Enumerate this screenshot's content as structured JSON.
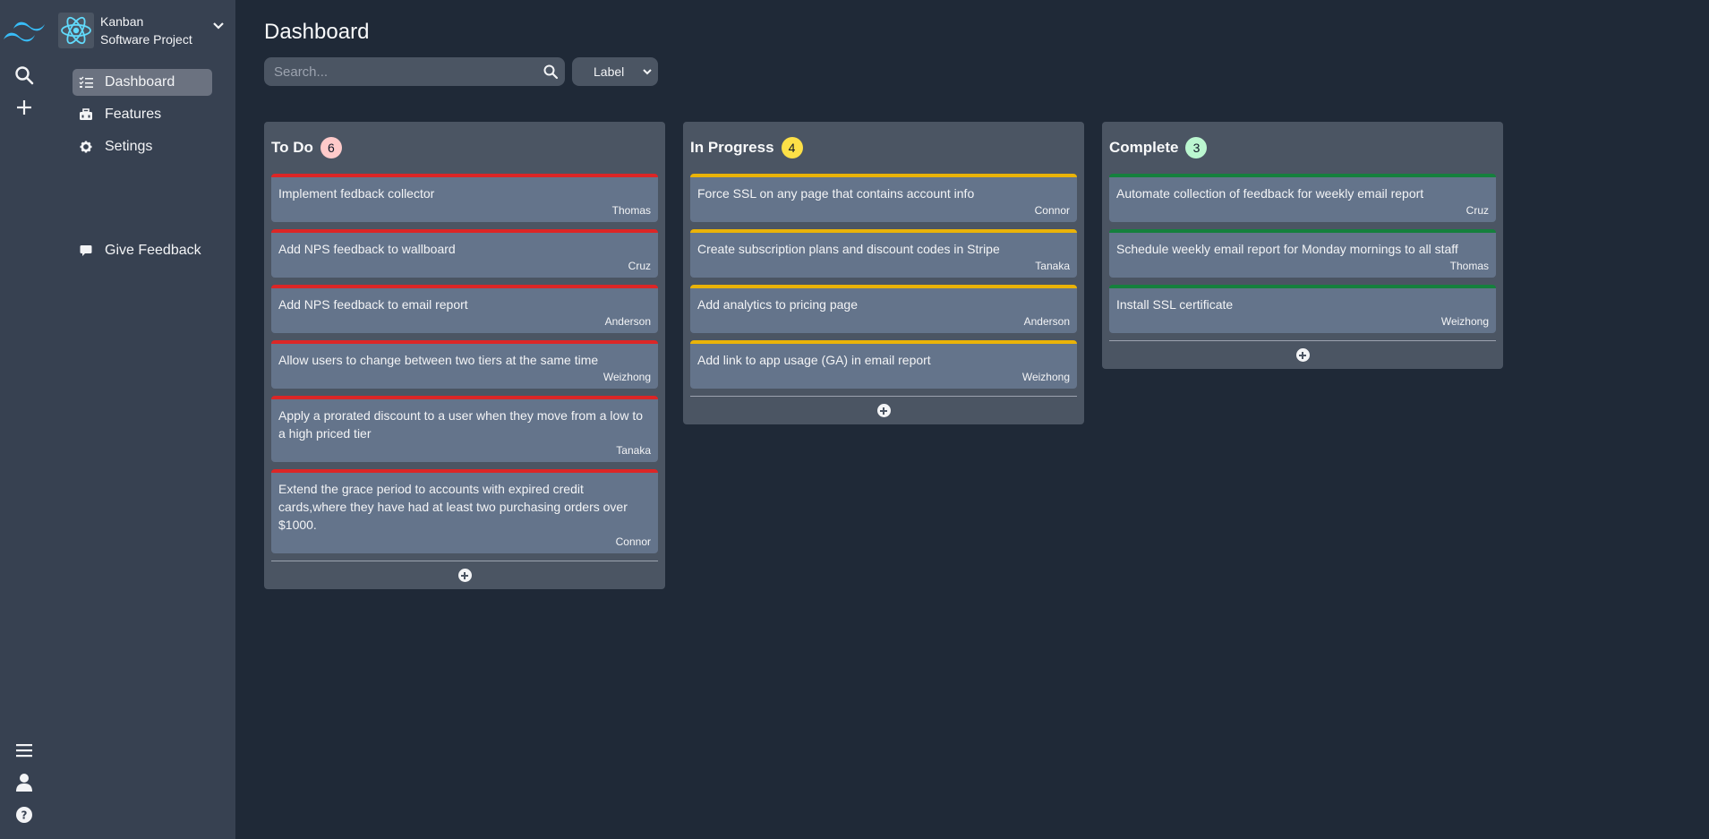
{
  "rail": {
    "icons": [
      "tailwind-logo",
      "search-icon",
      "plus-icon",
      "menu-icon",
      "user-icon",
      "help-icon"
    ]
  },
  "project": {
    "line1": "Kanban",
    "line2": "Software Project",
    "logo_icon": "react-atom-icon"
  },
  "nav": {
    "dashboard": "Dashboard",
    "features": "Features",
    "settings": "Setings",
    "feedback": "Give Feedback"
  },
  "header": {
    "title": "Dashboard",
    "search_placeholder": "Search...",
    "label_select": "Label"
  },
  "colors": {
    "todo": "#dc2626",
    "in_progress": "#eab308",
    "complete": "#15803d",
    "todo_badge": "#fecaca",
    "in_progress_badge": "#fde047",
    "complete_badge": "#bbf7d0"
  },
  "columns": [
    {
      "title": "To Do",
      "count": "6",
      "cards": [
        {
          "title": "Implement fedback collector",
          "assignee": "Thomas"
        },
        {
          "title": "Add NPS feedback to wallboard",
          "assignee": "Cruz"
        },
        {
          "title": "Add NPS feedback to email report",
          "assignee": "Anderson"
        },
        {
          "title": "Allow users to change between two tiers at the same time",
          "assignee": "Weizhong"
        },
        {
          "title": "Apply a prorated discount to a user when they move from a low to a high priced tier",
          "assignee": "Tanaka"
        },
        {
          "title": "Extend the grace period to accounts with expired credit cards,where they have had at least two purchasing orders over $1000.",
          "assignee": "Connor"
        }
      ]
    },
    {
      "title": "In Progress",
      "count": "4",
      "cards": [
        {
          "title": "Force SSL on any page that contains account info",
          "assignee": "Connor"
        },
        {
          "title": "Create subscription plans and discount codes in Stripe",
          "assignee": "Tanaka"
        },
        {
          "title": "Add analytics to pricing page",
          "assignee": "Anderson"
        },
        {
          "title": "Add link to app usage (GA) in email report",
          "assignee": "Weizhong"
        }
      ]
    },
    {
      "title": "Complete",
      "count": "3",
      "cards": [
        {
          "title": "Automate collection of feedback for weekly email report",
          "assignee": "Cruz"
        },
        {
          "title": "Schedule weekly email report for Monday mornings to all staff",
          "assignee": "Thomas"
        },
        {
          "title": "Install SSL certificate",
          "assignee": "Weizhong"
        }
      ]
    }
  ]
}
